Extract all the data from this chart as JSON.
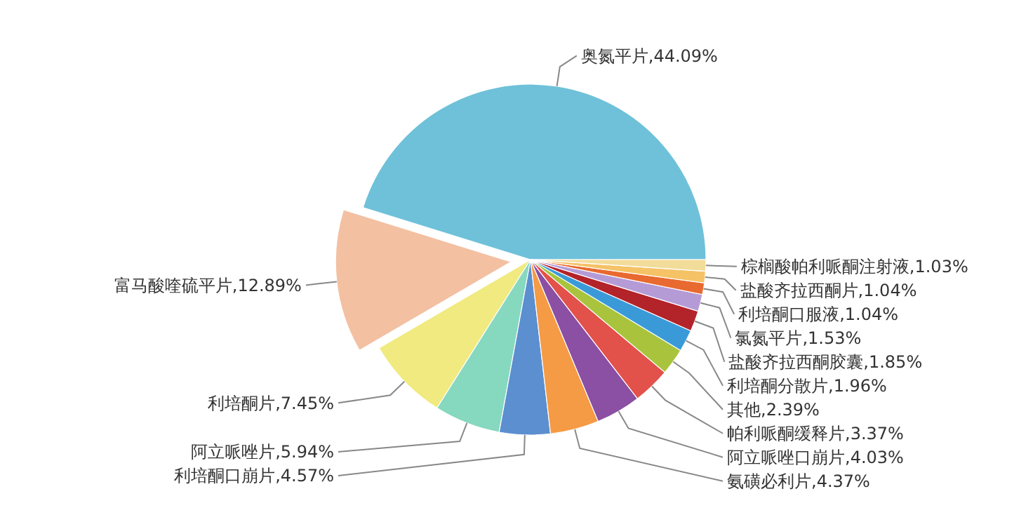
{
  "chart_data": {
    "type": "pie",
    "categories": [
      "奥氮平片",
      "富马酸喹硫平片",
      "利培酮片",
      "阿立哌唑片",
      "利培酮口崩片",
      "氨磺必利片",
      "阿立哌唑口崩片",
      "帕利哌酮缓释片",
      "其他",
      "利培酮分散片",
      "盐酸齐拉西酮胶囊",
      "氯氮平片",
      "利培酮口服液",
      "盐酸齐拉西酮片",
      "棕榈酸帕利哌酮注射液"
    ],
    "values": [
      44.09,
      12.89,
      7.45,
      5.94,
      4.57,
      4.37,
      4.03,
      3.37,
      2.39,
      1.96,
      1.85,
      1.53,
      1.04,
      1.04,
      1.03
    ],
    "colors": [
      "#6ec1d9",
      "#f3c0a2",
      "#f0ea80",
      "#86d8bf",
      "#5b8fcf",
      "#f59a45",
      "#8b4fa3",
      "#e2514a",
      "#a9c43c",
      "#3a9ad8",
      "#b3232a",
      "#b59bd6",
      "#e86a30",
      "#f5c266",
      "#f2dc9a"
    ],
    "value_labels": [
      "44.09%",
      "12.89%",
      "7.45%",
      "5.94%",
      "4.57%",
      "4.37%",
      "4.03%",
      "3.37%",
      "2.39%",
      "1.96%",
      "1.85%",
      "1.53%",
      "1.04%",
      "1.04%",
      "1.03%"
    ]
  }
}
